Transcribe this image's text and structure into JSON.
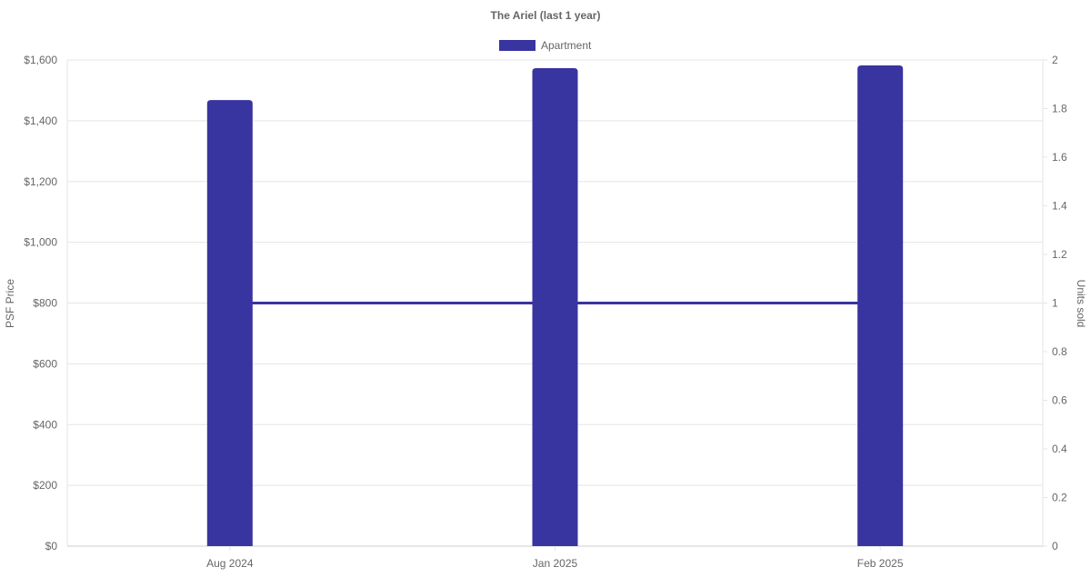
{
  "chart_data": {
    "type": "bar",
    "title": "The Ariel (last 1 year)",
    "categories": [
      "Aug 2024",
      "Jan 2025",
      "Feb 2025"
    ],
    "series": [
      {
        "name": "Apartment",
        "type": "bar",
        "axis": "left",
        "values": [
          1468,
          1573,
          1582
        ],
        "color": "#3834a0"
      },
      {
        "type": "line",
        "axis": "right",
        "values": [
          1,
          1,
          1
        ],
        "color": "#3834a0"
      }
    ],
    "ylabel": "PSF Price",
    "y2label": "Units sold",
    "ylim": [
      0,
      1600
    ],
    "y2lim": [
      0,
      2
    ],
    "yticks": [
      "$0",
      "$200",
      "$400",
      "$600",
      "$800",
      "$1,000",
      "$1,200",
      "$1,400",
      "$1,600"
    ],
    "y2ticks": [
      "0",
      "0.2",
      "0.4",
      "0.6",
      "0.8",
      "1",
      "1.2",
      "1.4",
      "1.6",
      "1.8",
      "2"
    ],
    "grid": true,
    "legend": "top-center"
  }
}
